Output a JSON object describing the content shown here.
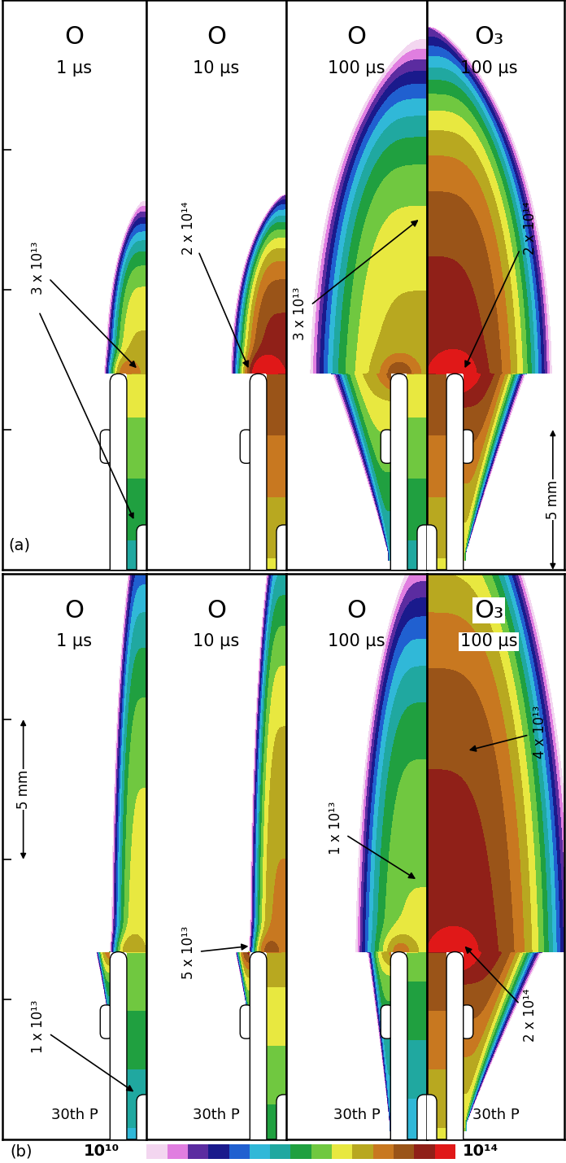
{
  "chart_data": {
    "type": "contour",
    "colorbar": {
      "range": [
        10000000000.0,
        100000000000000.0
      ],
      "log": true,
      "ticks": [
        {
          "value": 10000000000.0,
          "label": "10¹⁰"
        },
        {
          "value": 100000000000000.0,
          "label": "10¹⁴"
        }
      ],
      "colors": [
        "#ffffff",
        "#f3d6f0",
        "#e07ee0",
        "#5b2ca0",
        "#1a1a8c",
        "#2060d0",
        "#30b8d8",
        "#20a8a0",
        "#20a040",
        "#70c840",
        "#e8e840",
        "#b8a820",
        "#c87820",
        "#9a5418",
        "#902018",
        "#e01818"
      ]
    },
    "scale_bar": {
      "value": 5,
      "label": "5 mm"
    },
    "yticks": [
      5,
      10,
      15
    ],
    "tick_labels": false,
    "rows": [
      {
        "label": "(a)",
        "panels": [
          {
            "species": "O",
            "time": "1 μs",
            "peak": 30000000000000.0,
            "plume": {
              "top_mm": 13.4,
              "width_mm": 1.5,
              "base_mm": 7.0
            },
            "annotations": [
              {
                "label": "3 x 10¹³",
                "value": 30000000000000.0
              }
            ]
          },
          {
            "species": "O",
            "time": "10 μs",
            "peak": 200000000000000.0,
            "plume": {
              "top_mm": 13.4,
              "width_mm": 1.9,
              "base_mm": 7.0
            },
            "annotations": [
              {
                "label": "2 x 10¹⁴",
                "value": 200000000000000.0
              }
            ]
          },
          {
            "species": "O",
            "time": "100 μs",
            "peak": 30000000000000.0,
            "plume": {
              "top_mm": 19.4,
              "width_mm": 4.3,
              "base_mm": 0.3
            },
            "annotations": [
              {
                "label": "3 x 10¹³",
                "value": 30000000000000.0
              }
            ]
          },
          {
            "species": "O₃",
            "time": "100 μs",
            "peak": 200000000000000.0,
            "plume": {
              "top_mm": 19.4,
              "width_mm": 4.3,
              "base_mm": 0.3
            },
            "annotations": [
              {
                "label": "2 x 10¹⁴",
                "value": 200000000000000.0
              }
            ]
          }
        ]
      },
      {
        "label": "(b)",
        "pulse": "30th P",
        "panels": [
          {
            "species": "O",
            "time": "1 μs",
            "peak": 20000000000000.0,
            "plume": {
              "top_mm": 24.0,
              "width_mm": 1.3,
              "base_mm": 4.0
            },
            "annotations": [
              {
                "label": "1 x 10¹³",
                "value": 10000000000000.0
              }
            ]
          },
          {
            "species": "O",
            "time": "10 μs",
            "peak": 50000000000000.0,
            "plume": {
              "top_mm": 24.0,
              "width_mm": 1.3,
              "base_mm": 4.0
            },
            "annotations": [
              {
                "label": "5 x 10¹³",
                "value": 50000000000000.0
              }
            ]
          },
          {
            "species": "O",
            "time": "100 μs",
            "peak": 15000000000000.0,
            "plume": {
              "top_mm": 22.0,
              "width_mm": 2.7,
              "base_mm": 0.3
            },
            "annotations": [
              {
                "label": "1 x 10¹³",
                "value": 10000000000000.0
              }
            ]
          },
          {
            "species": "O₃",
            "time": "100 μs",
            "peak": 200000000000000.0,
            "plume": {
              "top_mm": 26.0,
              "width_mm": 5.0,
              "base_mm": 0.3
            },
            "annotations": [
              {
                "label": "4 x 10¹³",
                "value": 40000000000000.0
              },
              {
                "label": "2 x 10¹⁴",
                "value": 200000000000000.0
              }
            ]
          }
        ]
      }
    ]
  }
}
